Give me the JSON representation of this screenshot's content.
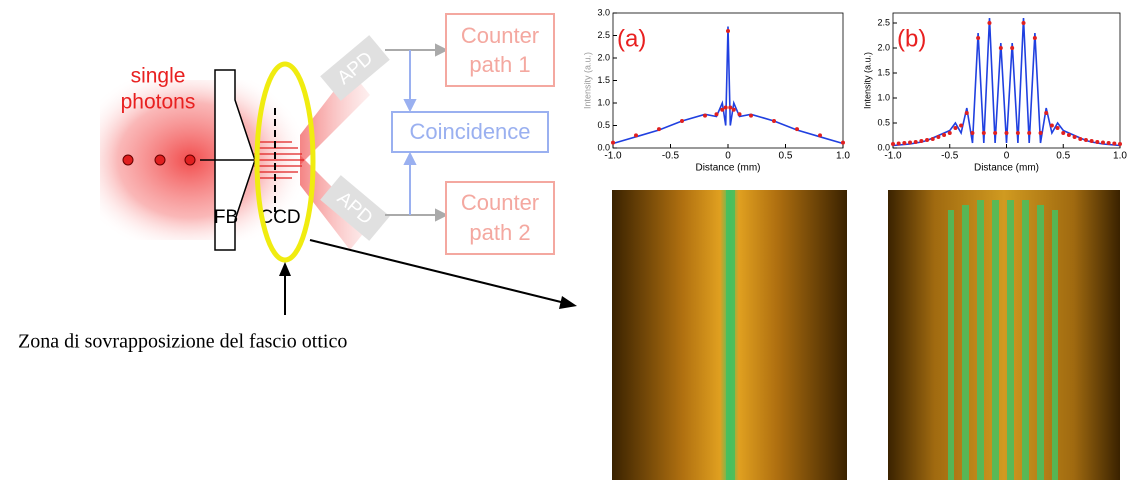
{
  "diagram": {
    "source_label": [
      "single",
      "photons"
    ],
    "fb_label": "FB",
    "ccd_label": "CCD",
    "apd_top": "APD",
    "apd_bottom": "APD",
    "counter1": [
      "Counter",
      "path 1"
    ],
    "coincidence": "Coincidence",
    "counter2": [
      "Counter",
      "path 2"
    ],
    "caption": "Zona di sovrapposizione del fascio ottico"
  },
  "chart_data": [
    {
      "type": "line",
      "annotation": "(a)",
      "xlabel": "Distance (mm)",
      "ylabel": "Intensity (a.u.)",
      "x": [
        -1.0,
        -0.8,
        -0.6,
        -0.4,
        -0.2,
        -0.1,
        -0.05,
        -0.02,
        0,
        0.02,
        0.05,
        0.1,
        0.2,
        0.4,
        0.6,
        0.8,
        1.0
      ],
      "series": [
        {
          "color": "#2040e0",
          "style": "line",
          "values": [
            0.1,
            0.25,
            0.4,
            0.6,
            0.75,
            0.7,
            1.0,
            0.5,
            2.7,
            0.5,
            1.0,
            0.7,
            0.75,
            0.6,
            0.4,
            0.25,
            0.1
          ]
        },
        {
          "color": "#e02020",
          "style": "points",
          "values": [
            0.12,
            0.28,
            0.42,
            0.6,
            0.72,
            0.75,
            0.85,
            0.9,
            2.6,
            0.9,
            0.85,
            0.75,
            0.72,
            0.6,
            0.42,
            0.28,
            0.12
          ]
        }
      ],
      "xlim": [
        -1,
        1
      ],
      "xticks": [
        {
          "value": -1,
          "label": "-1.0"
        },
        -0.5,
        0,
        0.5,
        {
          "value": 1,
          "label": "1.0"
        }
      ],
      "ylim": [
        0,
        3
      ],
      "yticks": [
        {
          "value": 0,
          "label": "0.0"
        },
        0.5,
        {
          "value": 1,
          "label": "1.0"
        },
        1.5,
        {
          "value": 2,
          "label": "2.0"
        },
        2.5,
        {
          "value": 3,
          "label": "3.0"
        }
      ]
    },
    {
      "type": "line",
      "annotation": "(b)",
      "xlabel": "Distance (mm)",
      "ylabel": "Intensity (a.u.)",
      "x": [
        -1.0,
        -0.95,
        -0.9,
        -0.85,
        -0.8,
        -0.75,
        -0.7,
        -0.65,
        -0.6,
        -0.55,
        -0.5,
        -0.45,
        -0.4,
        -0.35,
        -0.3,
        -0.25,
        -0.2,
        -0.15,
        -0.1,
        -0.05,
        0,
        0.05,
        0.1,
        0.15,
        0.2,
        0.25,
        0.3,
        0.35,
        0.4,
        0.45,
        0.5,
        0.55,
        0.6,
        0.65,
        0.7,
        0.75,
        0.8,
        0.85,
        0.9,
        0.95,
        1.0
      ],
      "series": [
        {
          "color": "#2040e0",
          "style": "line",
          "values": [
            0.05,
            0.06,
            0.07,
            0.08,
            0.1,
            0.12,
            0.15,
            0.2,
            0.25,
            0.3,
            0.35,
            0.5,
            0.3,
            0.8,
            0.1,
            2.3,
            0.1,
            2.6,
            0.1,
            2.1,
            0.1,
            2.1,
            0.1,
            2.6,
            0.1,
            2.3,
            0.1,
            0.8,
            0.3,
            0.5,
            0.35,
            0.3,
            0.25,
            0.2,
            0.15,
            0.12,
            0.1,
            0.08,
            0.07,
            0.06,
            0.05
          ]
        },
        {
          "color": "#e02020",
          "style": "points",
          "values": [
            0.08,
            0.09,
            0.1,
            0.11,
            0.12,
            0.14,
            0.16,
            0.18,
            0.22,
            0.26,
            0.3,
            0.4,
            0.45,
            0.7,
            0.3,
            2.2,
            0.3,
            2.5,
            0.3,
            2.0,
            0.3,
            2.0,
            0.3,
            2.5,
            0.3,
            2.2,
            0.3,
            0.7,
            0.45,
            0.4,
            0.3,
            0.26,
            0.22,
            0.18,
            0.16,
            0.14,
            0.12,
            0.11,
            0.1,
            0.09,
            0.08
          ]
        }
      ],
      "xlim": [
        -1,
        1
      ],
      "xticks": [
        {
          "value": -1,
          "label": "-1.0"
        },
        -0.5,
        0,
        0.5,
        {
          "value": 1,
          "label": "1.0"
        }
      ],
      "ylim": [
        0,
        2.7
      ],
      "yticks": [
        {
          "value": 0,
          "label": "0.0"
        },
        0.5,
        {
          "value": 1,
          "label": "1.0"
        },
        1.5,
        {
          "value": 2,
          "label": "2.0"
        },
        2.5
      ]
    }
  ]
}
